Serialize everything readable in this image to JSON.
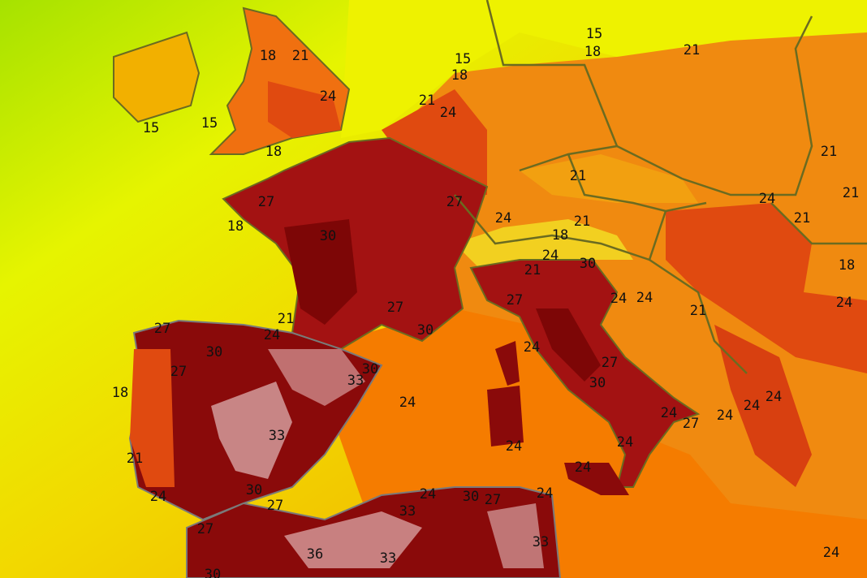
{
  "map": {
    "type": "temperature-contour-map",
    "region": "Western and Central Europe / Mediterranean",
    "contour_interval": 3,
    "color_scale": {
      "15": "#d8f000",
      "18": "#eef200",
      "21": "#f2c000",
      "24": "#f58a00",
      "27": "#e04a10",
      "30": "#a01010",
      "33": "#7a0505",
      "36": "#c88080"
    },
    "labels": [
      "18",
      "21",
      "15",
      "15",
      "24",
      "18",
      "15",
      "18",
      "21",
      "24",
      "15",
      "18",
      "21",
      "21",
      "21",
      "27",
      "27",
      "18",
      "30",
      "24",
      "21",
      "18",
      "24",
      "21",
      "30",
      "24",
      "21",
      "21",
      "18",
      "24",
      "24",
      "21",
      "24",
      "27",
      "27",
      "21",
      "24",
      "30",
      "27",
      "30",
      "27",
      "30",
      "33",
      "18",
      "24",
      "27",
      "30",
      "24",
      "33",
      "24",
      "27",
      "24",
      "24",
      "24",
      "21",
      "24",
      "24",
      "24",
      "24",
      "30",
      "27",
      "24",
      "30",
      "27",
      "24",
      "33",
      "27",
      "36",
      "33",
      "33",
      "30",
      "24"
    ]
  }
}
